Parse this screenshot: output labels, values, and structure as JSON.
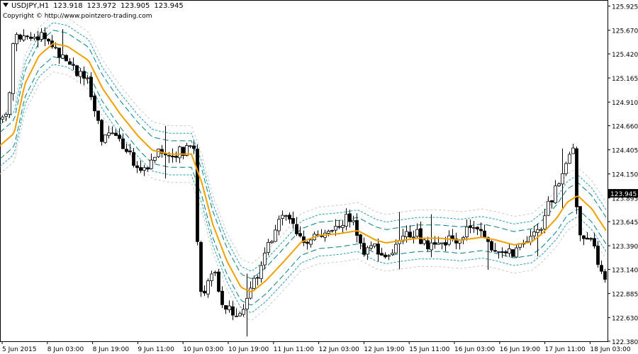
{
  "header": {
    "symbol": "USDJPY,H1",
    "open": "123.918",
    "high": "123.972",
    "low": "123.905",
    "close": "123.945",
    "copyright": "Copyright © http://www.pointzero-trading.com"
  },
  "colors": {
    "background": "#ffffff",
    "axis": "#000000",
    "ma_line": "#f0a000",
    "inner_band": "#008080",
    "middle_band": "#20a0b0",
    "outer_band": "#c8c8c8",
    "candle_up": "#ffffff",
    "candle_down": "#000000",
    "price_label_bg": "#000000",
    "price_label_text": "#ffffff"
  },
  "chart_data": {
    "type": "candlestick",
    "current_price": "123.945",
    "y_ticks": [
      "125.925",
      "125.670",
      "125.420",
      "125.165",
      "124.910",
      "124.660",
      "124.405",
      "124.150",
      "123.895",
      "123.645",
      "123.390",
      "123.140",
      "122.885",
      "122.630",
      "122.380"
    ],
    "x_ticks": [
      "5 Jun 2015",
      "8 Jun 03:00",
      "8 Jun 19:00",
      "9 Jun 11:00",
      "10 Jun 03:00",
      "10 Jun 19:00",
      "11 Jun 11:00",
      "12 Jun 03:00",
      "12 Jun 19:00",
      "15 Jun 11:00",
      "16 Jun 03:00",
      "16 Jun 19:00",
      "17 Jun 11:00",
      "18 Jun 03:00"
    ],
    "ylim": [
      122.38,
      125.99
    ],
    "ma_anchors": [
      [
        0,
        124.45
      ],
      [
        20,
        124.58
      ],
      [
        35,
        125.1
      ],
      [
        55,
        125.4
      ],
      [
        75,
        125.53
      ],
      [
        95,
        125.5
      ],
      [
        125,
        125.35
      ],
      [
        145,
        125.05
      ],
      [
        170,
        124.78
      ],
      [
        195,
        124.55
      ],
      [
        215,
        124.4
      ],
      [
        240,
        124.36
      ],
      [
        270,
        124.36
      ],
      [
        285,
        124.05
      ],
      [
        300,
        123.62
      ],
      [
        320,
        123.23
      ],
      [
        340,
        122.95
      ],
      [
        355,
        122.9
      ],
      [
        375,
        123.02
      ],
      [
        400,
        123.22
      ],
      [
        425,
        123.43
      ],
      [
        450,
        123.5
      ],
      [
        480,
        123.52
      ],
      [
        505,
        123.55
      ],
      [
        530,
        123.45
      ],
      [
        545,
        123.42
      ],
      [
        560,
        123.44
      ],
      [
        590,
        123.47
      ],
      [
        620,
        123.47
      ],
      [
        650,
        123.45
      ],
      [
        680,
        123.48
      ],
      [
        700,
        123.45
      ],
      [
        725,
        123.4
      ],
      [
        750,
        123.43
      ],
      [
        765,
        123.52
      ],
      [
        785,
        123.68
      ],
      [
        800,
        123.85
      ],
      [
        815,
        123.92
      ],
      [
        835,
        123.78
      ],
      [
        855,
        123.55
      ]
    ],
    "price_anchors": [
      [
        0,
        124.73
      ],
      [
        10,
        124.78
      ],
      [
        20,
        125.65
      ],
      [
        30,
        125.55
      ],
      [
        45,
        125.6
      ],
      [
        60,
        125.62
      ],
      [
        75,
        125.48
      ],
      [
        90,
        125.4
      ],
      [
        105,
        125.25
      ],
      [
        120,
        125.2
      ],
      [
        135,
        124.75
      ],
      [
        145,
        124.48
      ],
      [
        160,
        124.62
      ],
      [
        175,
        124.45
      ],
      [
        185,
        124.3
      ],
      [
        200,
        124.22
      ],
      [
        210,
        124.18
      ],
      [
        220,
        124.4
      ],
      [
        235,
        124.4
      ],
      [
        250,
        124.38
      ],
      [
        265,
        124.4
      ],
      [
        272,
        124.62
      ],
      [
        278,
        123.4
      ],
      [
        282,
        122.9
      ],
      [
        290,
        122.95
      ],
      [
        300,
        123.2
      ],
      [
        310,
        122.78
      ],
      [
        320,
        122.7
      ],
      [
        330,
        122.7
      ],
      [
        340,
        122.65
      ],
      [
        350,
        122.85
      ],
      [
        365,
        123.15
      ],
      [
        380,
        123.4
      ],
      [
        390,
        123.62
      ],
      [
        400,
        123.75
      ],
      [
        410,
        123.62
      ],
      [
        420,
        123.55
      ],
      [
        430,
        123.45
      ],
      [
        445,
        123.52
      ],
      [
        460,
        123.48
      ],
      [
        475,
        123.55
      ],
      [
        490,
        123.7
      ],
      [
        500,
        123.6
      ],
      [
        510,
        123.3
      ],
      [
        520,
        123.38
      ],
      [
        530,
        123.4
      ],
      [
        540,
        123.2
      ],
      [
        550,
        123.35
      ],
      [
        565,
        123.45
      ],
      [
        585,
        123.55
      ],
      [
        600,
        123.4
      ],
      [
        615,
        123.35
      ],
      [
        635,
        123.45
      ],
      [
        650,
        123.5
      ],
      [
        665,
        123.6
      ],
      [
        680,
        123.5
      ],
      [
        695,
        123.38
      ],
      [
        710,
        123.35
      ],
      [
        725,
        123.32
      ],
      [
        740,
        123.4
      ],
      [
        755,
        123.5
      ],
      [
        765,
        123.62
      ],
      [
        775,
        123.85
      ],
      [
        790,
        124.1
      ],
      [
        800,
        124.32
      ],
      [
        810,
        124.38
      ],
      [
        815,
        123.48
      ],
      [
        822,
        123.42
      ],
      [
        832,
        123.55
      ],
      [
        840,
        123.3
      ],
      [
        848,
        123.08
      ],
      [
        856,
        122.97
      ]
    ]
  }
}
